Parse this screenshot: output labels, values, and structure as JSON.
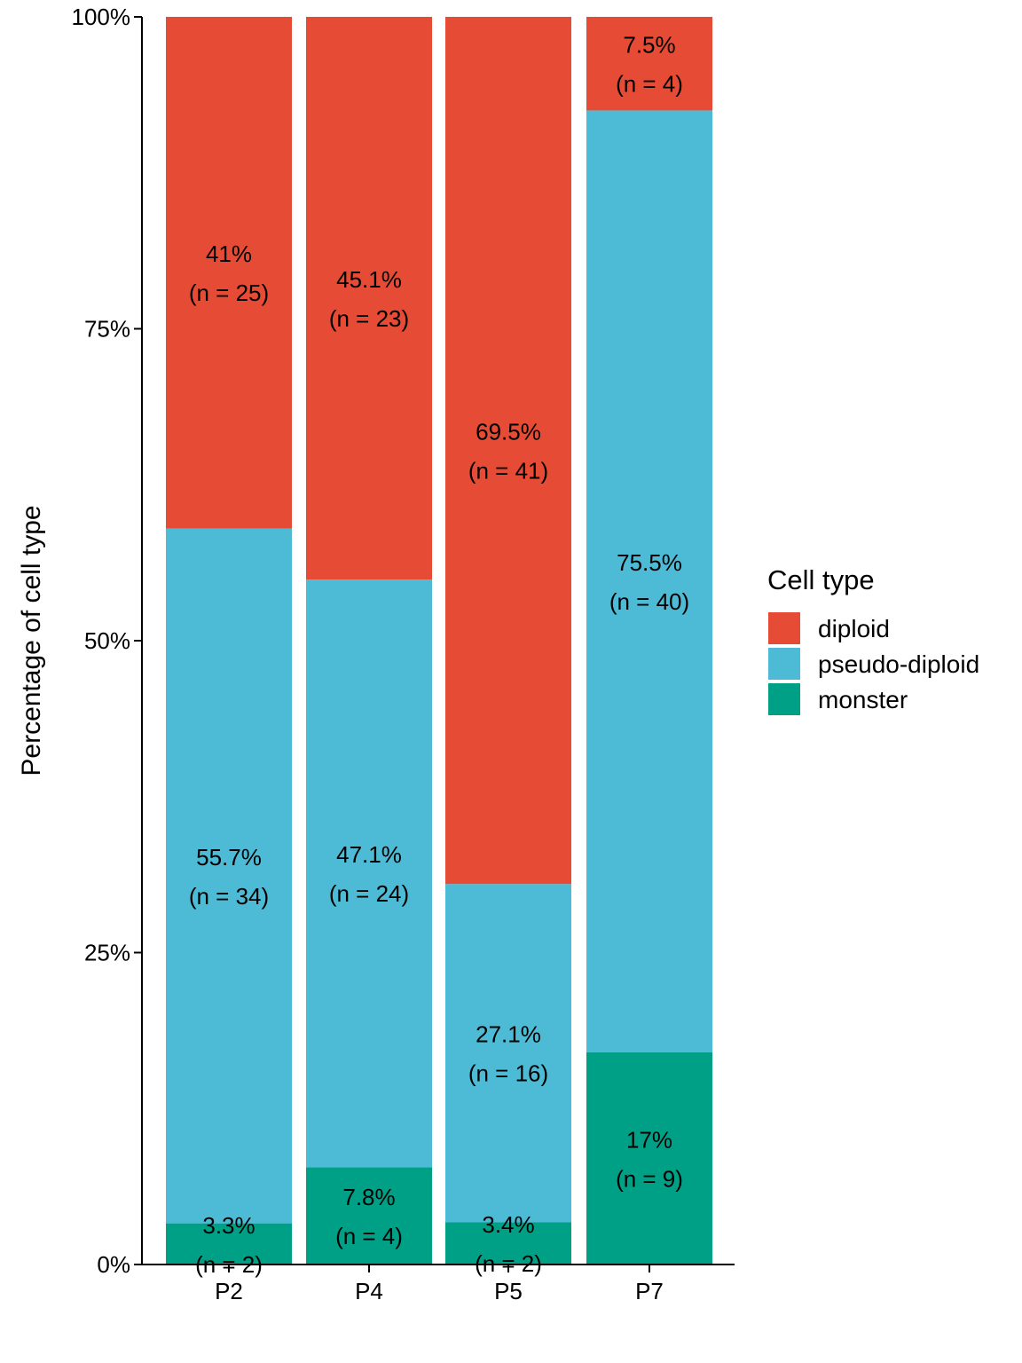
{
  "chart_data": {
    "type": "bar",
    "stacked": true,
    "categories": [
      "P2",
      "P4",
      "P5",
      "P7"
    ],
    "ylabel": "Percentage of cell type",
    "xlabel": "",
    "ylim": [
      0,
      100
    ],
    "y_ticks": [
      "0%",
      "25%",
      "50%",
      "75%",
      "100%"
    ],
    "y_tick_values": [
      0,
      25,
      50,
      75,
      100
    ],
    "legend": {
      "title": "Cell type",
      "placement": "right"
    },
    "series": [
      {
        "name": "monster",
        "color": "#00A087",
        "values": [
          3.3,
          7.8,
          3.4,
          17
        ],
        "labels": [
          "3.3%",
          "7.8%",
          "3.4%",
          "17%"
        ],
        "counts": [
          "(n = 2)",
          "(n = 4)",
          "(n = 2)",
          "(n = 9)"
        ]
      },
      {
        "name": "pseudo-diploid",
        "color": "#4DBBD5",
        "values": [
          55.7,
          47.1,
          27.1,
          75.5
        ],
        "labels": [
          "55.7%",
          "47.1%",
          "27.1%",
          "75.5%"
        ],
        "counts": [
          "(n = 34)",
          "(n = 24)",
          "(n = 16)",
          "(n = 40)"
        ]
      },
      {
        "name": "diploid",
        "color": "#E64B35",
        "values": [
          41,
          45.1,
          69.5,
          7.5
        ],
        "labels": [
          "41%",
          "45.1%",
          "69.5%",
          "7.5%"
        ],
        "counts": [
          "(n = 25)",
          "(n = 23)",
          "(n = 41)",
          "(n = 4)"
        ]
      }
    ],
    "legend_order": [
      "diploid",
      "pseudo-diploid",
      "monster"
    ]
  }
}
